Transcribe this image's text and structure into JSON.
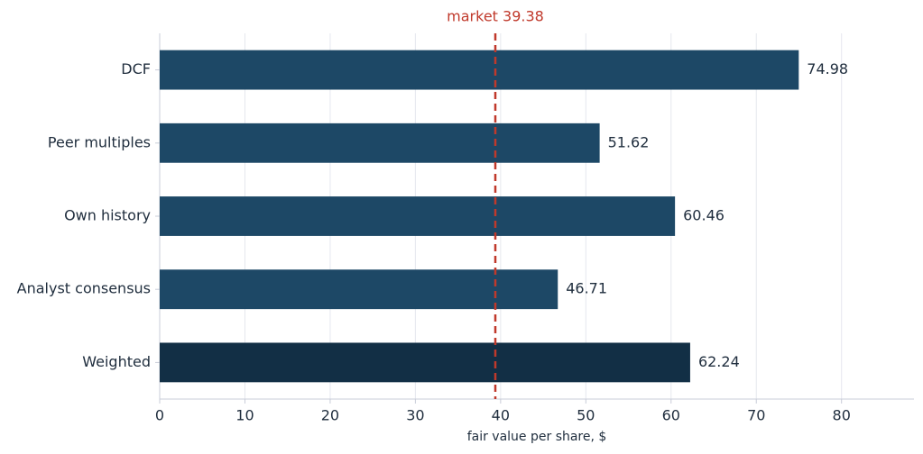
{
  "chart_data": {
    "type": "barh",
    "categories": [
      "DCF",
      "Peer multiples",
      "Own history",
      "Analyst consensus",
      "Weighted"
    ],
    "values": [
      74.98,
      51.62,
      60.46,
      46.71,
      62.24
    ],
    "colors": [
      "#1d4866",
      "#1d4866",
      "#1d4866",
      "#1d4866",
      "#122f45"
    ],
    "xlabel": "fair value per share, $",
    "xlim": [
      0,
      88.5
    ],
    "xticks": [
      0,
      10,
      20,
      30,
      40,
      50,
      60,
      70,
      80
    ],
    "grid": true,
    "reference_line": {
      "value": 39.38,
      "label": "market 39.38",
      "color": "#c0392b"
    }
  }
}
